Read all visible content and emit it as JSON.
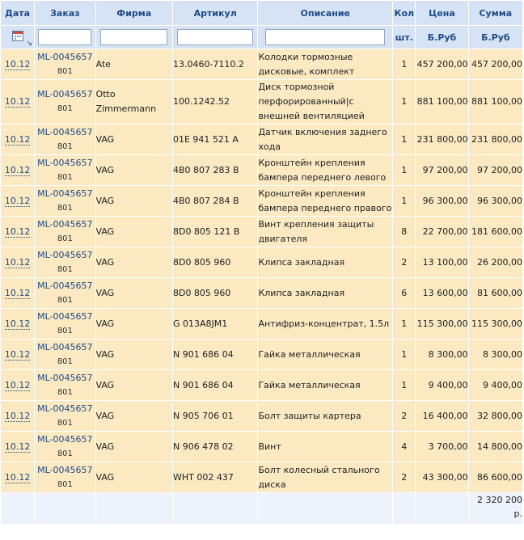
{
  "columns": {
    "date": "Дата",
    "order": "Заказ",
    "firm": "Фирма",
    "article": "Артикул",
    "description": "Описание",
    "qty": "Кол",
    "price": "Цена",
    "sum": "Сумма"
  },
  "units": {
    "qty": "шт.",
    "price": "Б.Руб",
    "sum": "Б.Руб"
  },
  "filters": {
    "order": "",
    "firm": "",
    "article": "",
    "description": ""
  },
  "rows": [
    {
      "date": "10.12",
      "order": "ML-0045657",
      "order_sub": "801",
      "firm": "Ate",
      "article": "13.0460-7110.2",
      "description": "Колодки тормозные дисковые, комплект",
      "qty": "1",
      "price": "457 200,00",
      "sum": "457 200,00"
    },
    {
      "date": "10.12",
      "order": "ML-0045657",
      "order_sub": "801",
      "firm": "Otto Zimmermann",
      "article": "100.1242.52",
      "description": "Диск тормозной перфорированный|с внешней вентиляцией",
      "qty": "1",
      "price": "881 100,00",
      "sum": "881 100,00"
    },
    {
      "date": "10.12",
      "order": "ML-0045657",
      "order_sub": "801",
      "firm": "VAG",
      "article": "01E 941 521 A",
      "description": "Датчик включения заднего хода",
      "qty": "1",
      "price": "231 800,00",
      "sum": "231 800,00"
    },
    {
      "date": "10.12",
      "order": "ML-0045657",
      "order_sub": "801",
      "firm": "VAG",
      "article": "4B0 807 283 B",
      "description": "Кронштейн крепления бампера переднего левого",
      "qty": "1",
      "price": "97 200,00",
      "sum": "97 200,00"
    },
    {
      "date": "10.12",
      "order": "ML-0045657",
      "order_sub": "801",
      "firm": "VAG",
      "article": "4B0 807 284 B",
      "description": "Кронштейн крепления бампера переднего правого",
      "qty": "1",
      "price": "96 300,00",
      "sum": "96 300,00"
    },
    {
      "date": "10.12",
      "order": "ML-0045657",
      "order_sub": "801",
      "firm": "VAG",
      "article": "8D0 805 121 B",
      "description": "Винт крепления защиты двигателя",
      "qty": "8",
      "price": "22 700,00",
      "sum": "181 600,00"
    },
    {
      "date": "10.12",
      "order": "ML-0045657",
      "order_sub": "801",
      "firm": "VAG",
      "article": "8D0 805 960",
      "description": "Клипса закладная",
      "qty": "2",
      "price": "13 100,00",
      "sum": "26 200,00"
    },
    {
      "date": "10.12",
      "order": "ML-0045657",
      "order_sub": "801",
      "firm": "VAG",
      "article": "8D0 805 960",
      "description": "Клипса закладная",
      "qty": "6",
      "price": "13 600,00",
      "sum": "81 600,00"
    },
    {
      "date": "10.12",
      "order": "ML-0045657",
      "order_sub": "801",
      "firm": "VAG",
      "article": "G 013A8JM1",
      "description": "Антифриз-концентрат, 1.5л",
      "qty": "1",
      "price": "115 300,00",
      "sum": "115 300,00"
    },
    {
      "date": "10.12",
      "order": "ML-0045657",
      "order_sub": "801",
      "firm": "VAG",
      "article": "N 901 686 04",
      "description": "Гайка металлическая",
      "qty": "1",
      "price": "8 300,00",
      "sum": "8 300,00"
    },
    {
      "date": "10.12",
      "order": "ML-0045657",
      "order_sub": "801",
      "firm": "VAG",
      "article": "N 901 686 04",
      "description": "Гайка металлическая",
      "qty": "1",
      "price": "9 400,00",
      "sum": "9 400,00"
    },
    {
      "date": "10.12",
      "order": "ML-0045657",
      "order_sub": "801",
      "firm": "VAG",
      "article": "N 905 706 01",
      "description": "Болт защиты картера",
      "qty": "2",
      "price": "16 400,00",
      "sum": "32 800,00"
    },
    {
      "date": "10.12",
      "order": "ML-0045657",
      "order_sub": "801",
      "firm": "VAG",
      "article": "N 906 478 02",
      "description": "Винт",
      "qty": "4",
      "price": "3 700,00",
      "sum": "14 800,00"
    },
    {
      "date": "10.12",
      "order": "ML-0045657",
      "order_sub": "801",
      "firm": "VAG",
      "article": "WHT 002 437",
      "description": "Болт колесный стального диска",
      "qty": "2",
      "price": "43 300,00",
      "sum": "86 600,00"
    }
  ],
  "total": "2 320 200 р.",
  "icons": {
    "calendar": "calendar-icon",
    "sort": "sort-arrow-icon"
  },
  "colors": {
    "header_bg": "#d6e3f4",
    "header_text": "#1e4b87",
    "row_bg": "#fbe9c2",
    "total_bg": "#eef3fb",
    "link": "#1e4b87"
  }
}
